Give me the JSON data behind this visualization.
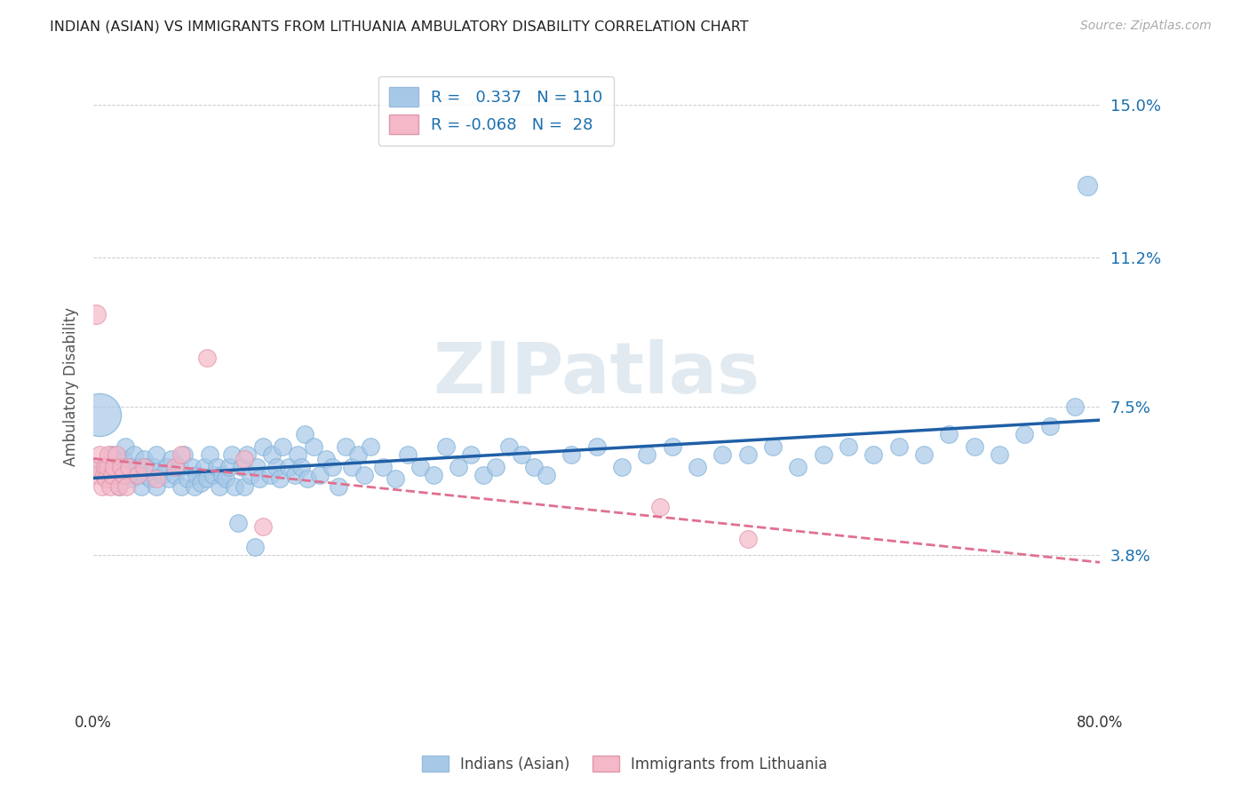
{
  "title": "INDIAN (ASIAN) VS IMMIGRANTS FROM LITHUANIA AMBULATORY DISABILITY CORRELATION CHART",
  "source": "Source: ZipAtlas.com",
  "ylabel": "Ambulatory Disability",
  "xlim": [
    0.0,
    0.8
  ],
  "ylim": [
    0.0,
    0.16
  ],
  "yticks": [
    0.038,
    0.075,
    0.112,
    0.15
  ],
  "ytick_labels": [
    "3.8%",
    "7.5%",
    "11.2%",
    "15.0%"
  ],
  "xticks": [
    0.0,
    0.16,
    0.32,
    0.48,
    0.64,
    0.8
  ],
  "xtick_labels": [
    "0.0%",
    "",
    "",
    "",
    "",
    "80.0%"
  ],
  "r_indian": 0.337,
  "n_indian": 110,
  "r_lithuania": -0.068,
  "n_lithuania": 28,
  "blue_color": "#a8c8e8",
  "pink_color": "#f4b8c8",
  "blue_line_color": "#1f5fa6",
  "pink_line_color": "#e07090",
  "legend_r_color": "#1a6faf",
  "background_color": "#ffffff",
  "watermark": "ZIPatlas",
  "indian_x": [
    0.005,
    0.01,
    0.015,
    0.02,
    0.022,
    0.024,
    0.025,
    0.028,
    0.03,
    0.03,
    0.032,
    0.033,
    0.035,
    0.038,
    0.04,
    0.04,
    0.042,
    0.045,
    0.048,
    0.05,
    0.05,
    0.055,
    0.058,
    0.06,
    0.062,
    0.065,
    0.068,
    0.07,
    0.072,
    0.075,
    0.078,
    0.08,
    0.082,
    0.085,
    0.088,
    0.09,
    0.092,
    0.095,
    0.098,
    0.1,
    0.102,
    0.105,
    0.108,
    0.11,
    0.112,
    0.115,
    0.118,
    0.12,
    0.122,
    0.125,
    0.128,
    0.13,
    0.132,
    0.135,
    0.14,
    0.142,
    0.145,
    0.148,
    0.15,
    0.155,
    0.16,
    0.162,
    0.165,
    0.168,
    0.17,
    0.175,
    0.18,
    0.185,
    0.19,
    0.195,
    0.2,
    0.205,
    0.21,
    0.215,
    0.22,
    0.23,
    0.24,
    0.25,
    0.26,
    0.27,
    0.28,
    0.29,
    0.3,
    0.31,
    0.32,
    0.33,
    0.34,
    0.35,
    0.36,
    0.38,
    0.4,
    0.42,
    0.44,
    0.46,
    0.48,
    0.5,
    0.52,
    0.54,
    0.56,
    0.58,
    0.6,
    0.62,
    0.64,
    0.66,
    0.68,
    0.7,
    0.72,
    0.74,
    0.76,
    0.78
  ],
  "indian_y": [
    0.06,
    0.058,
    0.063,
    0.055,
    0.06,
    0.062,
    0.065,
    0.058,
    0.057,
    0.06,
    0.063,
    0.058,
    0.06,
    0.055,
    0.058,
    0.062,
    0.06,
    0.057,
    0.06,
    0.055,
    0.063,
    0.058,
    0.06,
    0.057,
    0.062,
    0.058,
    0.06,
    0.055,
    0.063,
    0.057,
    0.06,
    0.055,
    0.058,
    0.056,
    0.06,
    0.057,
    0.063,
    0.058,
    0.06,
    0.055,
    0.058,
    0.057,
    0.06,
    0.063,
    0.055,
    0.046,
    0.06,
    0.055,
    0.063,
    0.058,
    0.04,
    0.06,
    0.057,
    0.065,
    0.058,
    0.063,
    0.06,
    0.057,
    0.065,
    0.06,
    0.058,
    0.063,
    0.06,
    0.068,
    0.057,
    0.065,
    0.058,
    0.062,
    0.06,
    0.055,
    0.065,
    0.06,
    0.063,
    0.058,
    0.065,
    0.06,
    0.057,
    0.063,
    0.06,
    0.058,
    0.065,
    0.06,
    0.063,
    0.058,
    0.06,
    0.065,
    0.063,
    0.06,
    0.058,
    0.063,
    0.065,
    0.06,
    0.063,
    0.065,
    0.06,
    0.063,
    0.063,
    0.065,
    0.06,
    0.063,
    0.065,
    0.063,
    0.065,
    0.063,
    0.068,
    0.065,
    0.063,
    0.068,
    0.07,
    0.075
  ],
  "india_outlier_x": [
    0.79
  ],
  "india_outlier_y": [
    0.13
  ],
  "india_big_x": [
    0.005
  ],
  "india_big_y": [
    0.073
  ],
  "lithuania_x": [
    0.0,
    0.002,
    0.005,
    0.007,
    0.008,
    0.009,
    0.01,
    0.011,
    0.012,
    0.013,
    0.015,
    0.016,
    0.018,
    0.02,
    0.022,
    0.024,
    0.026,
    0.028,
    0.035,
    0.04,
    0.05,
    0.065,
    0.07,
    0.09,
    0.12,
    0.135,
    0.45,
    0.52
  ],
  "lithuania_y": [
    0.06,
    0.058,
    0.063,
    0.055,
    0.058,
    0.06,
    0.057,
    0.06,
    0.063,
    0.055,
    0.058,
    0.06,
    0.063,
    0.055,
    0.06,
    0.058,
    0.055,
    0.06,
    0.058,
    0.06,
    0.057,
    0.06,
    0.063,
    0.087,
    0.062,
    0.045,
    0.05,
    0.042
  ],
  "lithu_outlier_x": [
    0.002
  ],
  "lithu_outlier_y": [
    0.098
  ]
}
